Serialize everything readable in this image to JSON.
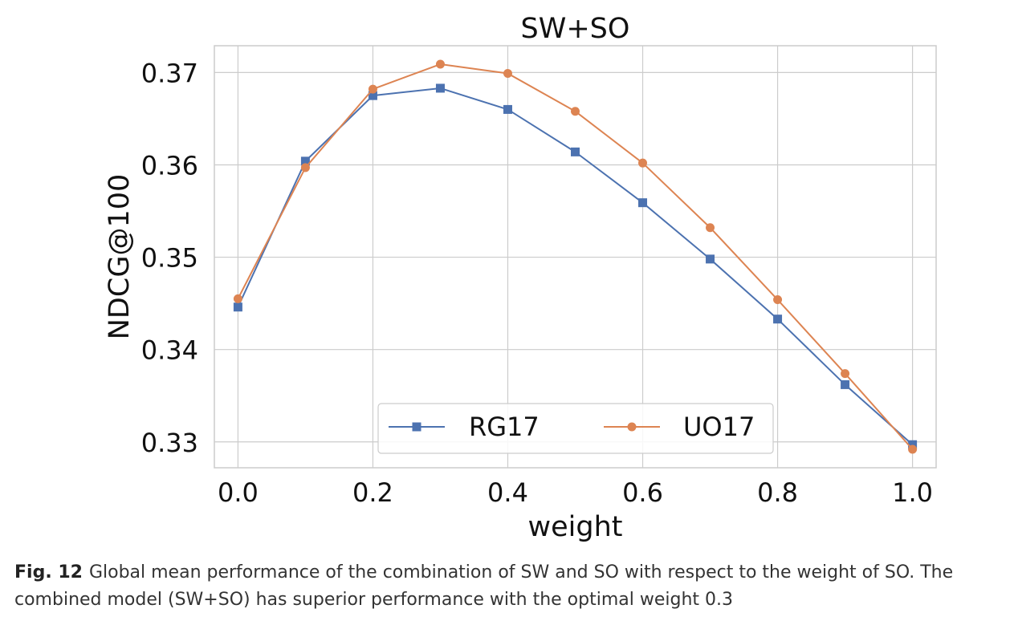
{
  "chart_data": {
    "type": "line",
    "title": "SW+SO",
    "xlabel": "weight",
    "ylabel": "NDCG@100",
    "x": [
      0.0,
      0.1,
      0.2,
      0.3,
      0.4,
      0.5,
      0.6,
      0.7,
      0.8,
      0.9,
      1.0
    ],
    "xticks": [
      "0.0",
      "0.2",
      "0.4",
      "0.6",
      "0.8",
      "1.0"
    ],
    "yticks": [
      "0.33",
      "0.34",
      "0.35",
      "0.36",
      "0.37"
    ],
    "xlim": [
      -0.035,
      1.035
    ],
    "ylim": [
      0.3272,
      0.3729
    ],
    "grid": true,
    "legend_position": "lower center",
    "series": [
      {
        "name": "RG17",
        "marker": "square",
        "color": "#4c72b0",
        "values": [
          0.3446,
          0.3604,
          0.3675,
          0.3683,
          0.366,
          0.3614,
          0.3559,
          0.3498,
          0.3433,
          0.3362,
          0.3297
        ]
      },
      {
        "name": "UO17",
        "marker": "circle",
        "color": "#dd8452",
        "values": [
          0.3455,
          0.3597,
          0.3682,
          0.3709,
          0.3699,
          0.3658,
          0.3602,
          0.3532,
          0.3454,
          0.3374,
          0.3292
        ]
      }
    ]
  },
  "caption": {
    "label": "Fig. 12",
    "text": "Global mean performance of the combination of SW and SO with respect to the weight of SO. The combined model (SW+SO) has superior performance with the optimal weight 0.3"
  }
}
